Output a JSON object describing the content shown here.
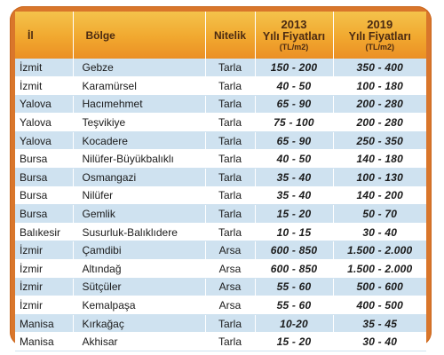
{
  "table": {
    "headers": {
      "il": "İl",
      "bolge": "Bölge",
      "nitelik": "Nitelik",
      "price2013": {
        "year": "2013",
        "label": "Yılı Fiyatları",
        "unit": "(TL/m2)"
      },
      "price2019": {
        "year": "2019",
        "label": "Yılı Fiyatları",
        "unit": "(TL/m2)"
      }
    },
    "rows": [
      {
        "il": "İzmit",
        "bolge": "Gebze",
        "nitelik": "Tarla",
        "p2013": "150  - 200",
        "p2019": "350 - 400"
      },
      {
        "il": "İzmit",
        "bolge": "Karamürsel",
        "nitelik": "Tarla",
        "p2013": "40 - 50",
        "p2019": "100 - 180"
      },
      {
        "il": "Yalova",
        "bolge": "Hacımehmet",
        "nitelik": "Tarla",
        "p2013": "65 - 90",
        "p2019": "200 - 280"
      },
      {
        "il": "Yalova",
        "bolge": "Teşvikiye",
        "nitelik": "Tarla",
        "p2013": "75 - 100",
        "p2019": "200 - 280"
      },
      {
        "il": "Yalova",
        "bolge": "Kocadere",
        "nitelik": "Tarla",
        "p2013": "65 - 90",
        "p2019": "250 - 350"
      },
      {
        "il": "Bursa",
        "bolge": "Nilüfer-Büyükbalıklı",
        "nitelik": "Tarla",
        "p2013": "40 - 50",
        "p2019": "140 - 180"
      },
      {
        "il": "Bursa",
        "bolge": "Osmangazi",
        "nitelik": "Tarla",
        "p2013": "35 - 40",
        "p2019": "100 - 130"
      },
      {
        "il": "Bursa",
        "bolge": "Nilüfer",
        "nitelik": "Tarla",
        "p2013": "35 - 40",
        "p2019": "140 - 200"
      },
      {
        "il": "Bursa",
        "bolge": "Gemlik",
        "nitelik": "Tarla",
        "p2013": "15 - 20",
        "p2019": "50 - 70"
      },
      {
        "il": "Balıkesir",
        "bolge": "Susurluk-Balıklıdere",
        "nitelik": "Tarla",
        "p2013": "10 - 15",
        "p2019": "30 - 40"
      },
      {
        "il": "İzmir",
        "bolge": "Çamdibi",
        "nitelik": "Arsa",
        "p2013": "600 - 850",
        "p2019": "1.500 - 2.000"
      },
      {
        "il": "İzmir",
        "bolge": "Altındağ",
        "nitelik": "Arsa",
        "p2013": "600 - 850",
        "p2019": "1.500 - 2.000"
      },
      {
        "il": "İzmir",
        "bolge": "Sütçüler",
        "nitelik": "Arsa",
        "p2013": "55 - 60",
        "p2019": "500 - 600"
      },
      {
        "il": "İzmir",
        "bolge": "Kemalpaşa",
        "nitelik": "Arsa",
        "p2013": "55 - 60",
        "p2019": "400 - 500"
      },
      {
        "il": "Manisa",
        "bolge": "Kırkağaç",
        "nitelik": "Tarla",
        "p2013": "10-20",
        "p2019": "35 - 45"
      },
      {
        "il": "Manisa",
        "bolge": "Akhisar",
        "nitelik": "Tarla",
        "p2013": "15 - 20",
        "p2019": "30 - 40"
      }
    ]
  }
}
